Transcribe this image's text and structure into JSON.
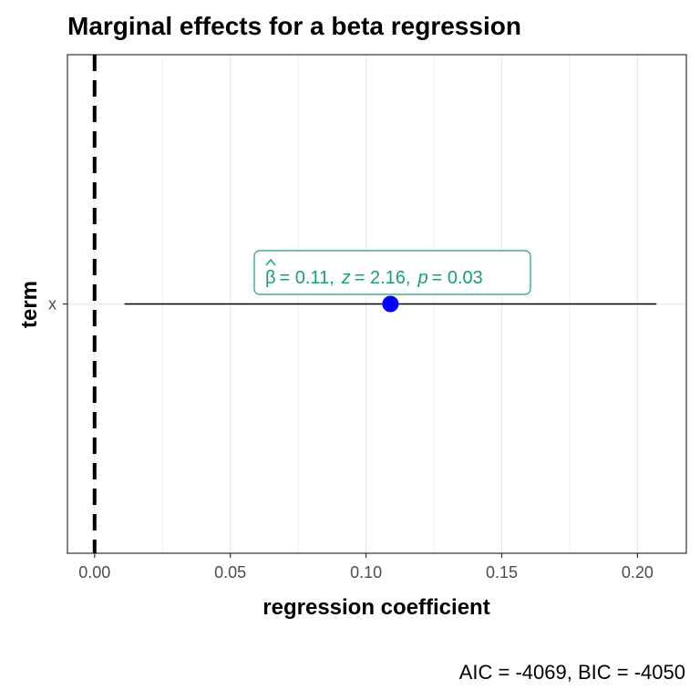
{
  "chart_data": {
    "type": "scatter",
    "title": "Marginal effects for a beta regression",
    "xlabel": "regression coefficient",
    "ylabel": "term",
    "caption": "AIC = -4069, BIC = -4050",
    "xlim": [
      -0.01,
      0.218
    ],
    "x_ticks": [
      0.0,
      0.05,
      0.1,
      0.15,
      0.2
    ],
    "x_tick_labels": [
      "0.00",
      "0.05",
      "0.10",
      "0.15",
      "0.20"
    ],
    "categories": [
      "x"
    ],
    "points": [
      {
        "term": "x",
        "estimate": 0.109,
        "conf_low": 0.011,
        "conf_high": 0.207
      }
    ],
    "reference_line": {
      "x": 0.0,
      "style": "dashed"
    },
    "annotation": {
      "beta_symbol": "β",
      "beta_value": "= 0.11,",
      "z_symbol": "z",
      "z_value": "= 2.16,",
      "p_symbol": "p",
      "p_value": "= 0.03"
    },
    "grid": true,
    "colors": {
      "point": "#0000ff",
      "annotation": "#1b9e77",
      "errorbar": "#000000",
      "grid": "#ebebeb",
      "panel_border": "#333333"
    }
  }
}
